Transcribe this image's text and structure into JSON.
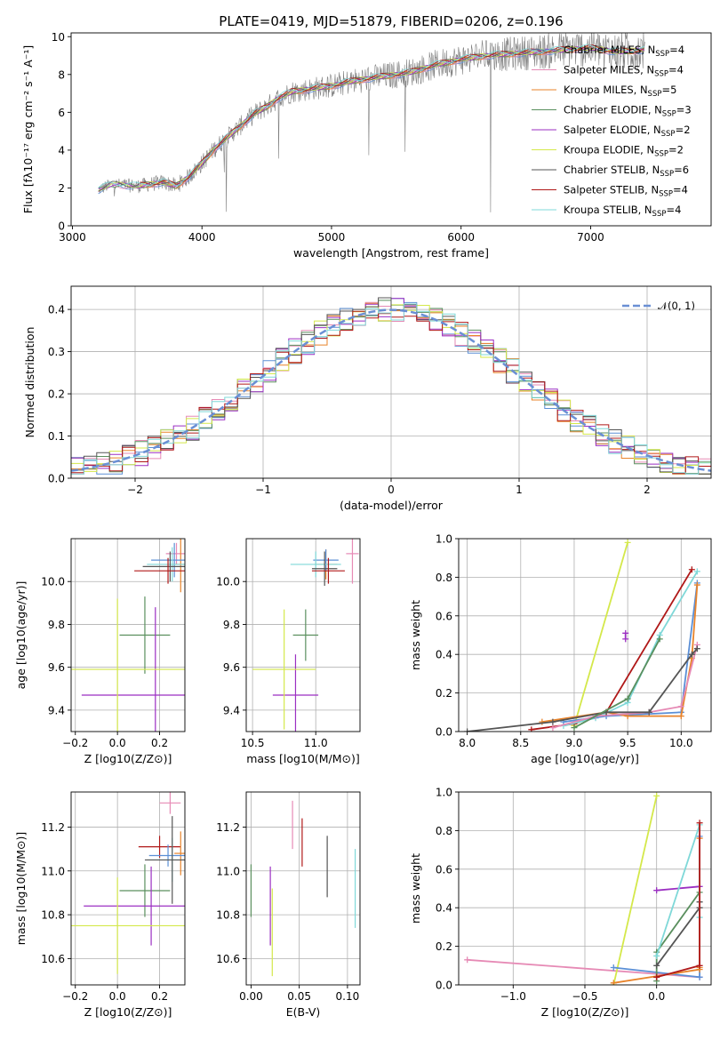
{
  "figure": {
    "title": "PLATE=0419, MJD=51879, FIBERID=0206, z=0.196",
    "colors": {
      "Chabrier MILES": "#5b8fd6",
      "Salpeter MILES": "#e68ab5",
      "Kroupa MILES": "#e8832a",
      "Chabrier ELODIE": "#5a8f5e",
      "Salpeter ELODIE": "#9b2fc2",
      "Kroupa ELODIE": "#d4e84a",
      "Chabrier STELIB": "#555555",
      "Salpeter STELIB": "#b01818",
      "Kroupa STELIB": "#7fd8d8",
      "data": "#808080",
      "normal": "#6a8fd4"
    }
  },
  "chart_data": [
    {
      "id": "spectrum",
      "type": "line",
      "title": "PLATE=0419, MJD=51879, FIBERID=0206, z=0.196",
      "xlabel": "wavelength [Angstrom, rest frame]",
      "ylabel": "Flux [fλ10⁻¹⁷ erg cm⁻² s⁻¹ A⁻¹]",
      "xlim": [
        2990,
        7930
      ],
      "ylim": [
        0,
        10.2
      ],
      "xticks": [
        "3000",
        "4000",
        "5000",
        "6000",
        "7000"
      ],
      "yticks": [
        "0",
        "2",
        "4",
        "6",
        "8",
        "10"
      ],
      "continuum": {
        "x": [
          3200,
          3300,
          3500,
          3700,
          3800,
          3900,
          4000,
          4100,
          4200,
          4300,
          4400,
          4500,
          4600,
          4700,
          4800,
          4900,
          5000,
          5200,
          5400,
          5600,
          5800,
          6000,
          6200,
          6400,
          6600,
          6800,
          7000,
          7200,
          7400
        ],
        "y": [
          1.9,
          2.2,
          2.1,
          2.3,
          2.1,
          2.6,
          3.3,
          4.1,
          4.7,
          5.3,
          5.9,
          6.3,
          6.8,
          7.1,
          7.2,
          7.3,
          7.4,
          7.7,
          7.9,
          8.1,
          8.5,
          8.8,
          9.0,
          9.1,
          9.2,
          9.3,
          9.4,
          9.2,
          9.3
        ]
      },
      "legend": [
        {
          "label": "Chabrier MILES, N",
          "sub": "SSP",
          "n": "=4"
        },
        {
          "label": "Salpeter MILES, N",
          "sub": "SSP",
          "n": "=4"
        },
        {
          "label": "Kroupa MILES, N",
          "sub": "SSP",
          "n": "=5"
        },
        {
          "label": "Chabrier ELODIE, N",
          "sub": "SSP",
          "n": "=3"
        },
        {
          "label": "Salpeter ELODIE, N",
          "sub": "SSP",
          "n": "=2"
        },
        {
          "label": "Kroupa ELODIE, N",
          "sub": "SSP",
          "n": "=2"
        },
        {
          "label": "Chabrier STELIB, N",
          "sub": "SSP",
          "n": "=6"
        },
        {
          "label": "Salpeter STELIB, N",
          "sub": "SSP",
          "n": "=4"
        },
        {
          "label": "Kroupa STELIB, N",
          "sub": "SSP",
          "n": "=4"
        }
      ]
    },
    {
      "id": "residuals",
      "type": "histogram",
      "xlabel": "(data-model)/error",
      "ylabel": "Normed distribution",
      "xlim": [
        -2.5,
        2.5
      ],
      "ylim": [
        0,
        0.455
      ],
      "xticks": [
        "−2",
        "−1",
        "0",
        "1",
        "2"
      ],
      "yticks": [
        "0.0",
        "0.1",
        "0.2",
        "0.3",
        "0.4"
      ],
      "bin_width": 0.1,
      "legend": {
        "label": "𝒩(0, 1)"
      },
      "grid": true
    },
    {
      "id": "age-vs-Z",
      "type": "scatter",
      "xlabel": "Z [log10(Z/Z⊙)]",
      "ylabel": "age  [log10(age/yr)]",
      "xlim": [
        -0.22,
        0.32
      ],
      "ylim": [
        9.3,
        10.2
      ],
      "xticks": [
        "−0.2",
        "0.0",
        "0.2"
      ],
      "yticks": [
        "9.4",
        "9.6",
        "9.8",
        "10.0"
      ],
      "points": [
        {
          "model": "Salpeter MILES",
          "x": 0.28,
          "y": 10.13,
          "xerr": 0.05,
          "yerr": 0.05
        },
        {
          "model": "Kroupa MILES",
          "x": 0.3,
          "y": 10.08,
          "xerr": 0.04,
          "yerr": 0.13
        },
        {
          "model": "Chabrier MILES",
          "x": 0.27,
          "y": 10.1,
          "xerr": 0.11,
          "yerr": 0.08
        },
        {
          "model": "Kroupa STELIB",
          "x": 0.26,
          "y": 10.08,
          "xerr": 0.12,
          "yerr": 0.08
        },
        {
          "model": "Chabrier STELIB",
          "x": 0.25,
          "y": 10.07,
          "xerr": 0.13,
          "yerr": 0.07
        },
        {
          "model": "Salpeter STELIB",
          "x": 0.24,
          "y": 10.05,
          "xerr": 0.16,
          "yerr": 0.06
        },
        {
          "model": "Chabrier ELODIE",
          "x": 0.13,
          "y": 9.75,
          "xerr": 0.12,
          "yerr": 0.18
        },
        {
          "model": "Salpeter ELODIE",
          "x": 0.18,
          "y": 9.47,
          "xerr": 0.35,
          "yerr": 0.41
        },
        {
          "model": "Kroupa ELODIE",
          "x": 0.0,
          "y": 9.59,
          "xerr": 0.62,
          "yerr": 0.33
        }
      ]
    },
    {
      "id": "age-vs-mass",
      "type": "scatter",
      "xlabel": "mass [log10(M/M⊙)]",
      "ylabel": "",
      "xlim": [
        10.45,
        11.35
      ],
      "ylim": [
        9.3,
        10.2
      ],
      "xticks": [
        "10.5",
        "11.0"
      ],
      "yticks": [
        "9.4",
        "9.6",
        "9.8",
        "10.0"
      ],
      "points": [
        {
          "model": "Salpeter MILES",
          "x": 11.29,
          "y": 10.13,
          "xerr": 0.05,
          "yerr": 0.14
        },
        {
          "model": "Kroupa MILES",
          "x": 11.08,
          "y": 10.08,
          "xerr": 0.09,
          "yerr": 0.07
        },
        {
          "model": "Chabrier MILES",
          "x": 11.08,
          "y": 10.1,
          "xerr": 0.1,
          "yerr": 0.05
        },
        {
          "model": "Kroupa STELIB",
          "x": 11.0,
          "y": 10.08,
          "xerr": 0.2,
          "yerr": 0.06
        },
        {
          "model": "Chabrier STELIB",
          "x": 11.07,
          "y": 10.06,
          "xerr": 0.1,
          "yerr": 0.08
        },
        {
          "model": "Salpeter STELIB",
          "x": 11.1,
          "y": 10.05,
          "xerr": 0.13,
          "yerr": 0.06
        },
        {
          "model": "Chabrier ELODIE",
          "x": 10.92,
          "y": 9.75,
          "xerr": 0.1,
          "yerr": 0.12
        },
        {
          "model": "Salpeter ELODIE",
          "x": 10.84,
          "y": 9.47,
          "xerr": 0.18,
          "yerr": 0.19
        },
        {
          "model": "Kroupa ELODIE",
          "x": 10.75,
          "y": 9.59,
          "xerr": 0.25,
          "yerr": 0.28
        }
      ]
    },
    {
      "id": "weight-vs-age",
      "type": "line",
      "xlabel": "age  [log10(age/yr)]",
      "ylabel": "mass weight",
      "xlim": [
        7.92,
        10.28
      ],
      "ylim": [
        0,
        1.0
      ],
      "xticks": [
        "8.0",
        "8.5",
        "9.0",
        "9.5",
        "10.0"
      ],
      "yticks": [
        "0.0",
        "0.2",
        "0.4",
        "0.6",
        "0.8",
        "1.0"
      ],
      "series": [
        {
          "model": "Kroupa ELODIE",
          "x": [
            9.0,
            9.5
          ],
          "y": [
            0.03,
            0.98
          ]
        },
        {
          "model": "Salpeter STELIB",
          "x": [
            8.6,
            9.0,
            9.3,
            10.1
          ],
          "y": [
            0.01,
            0.04,
            0.1,
            0.84
          ]
        },
        {
          "model": "Kroupa STELIB",
          "x": [
            8.9,
            9.2,
            9.5,
            9.8,
            10.15
          ],
          "y": [
            0.03,
            0.07,
            0.15,
            0.5,
            0.83
          ]
        },
        {
          "model": "Chabrier MILES",
          "x": [
            8.9,
            9.3,
            10.0,
            10.15
          ],
          "y": [
            0.05,
            0.08,
            0.1,
            0.77
          ]
        },
        {
          "model": "Kroupa MILES",
          "x": [
            8.7,
            9.3,
            9.5,
            10.0,
            10.1,
            10.15
          ],
          "y": [
            0.05,
            0.1,
            0.08,
            0.08,
            0.38,
            0.76
          ]
        },
        {
          "model": "Salpeter MILES",
          "x": [
            8.8,
            9.2,
            9.7,
            10.0,
            10.15
          ],
          "y": [
            0.02,
            0.08,
            0.1,
            0.13,
            0.45
          ]
        },
        {
          "model": "Chabrier STELIB",
          "x": [
            8.0,
            8.8,
            9.3,
            9.7,
            10.1,
            10.15
          ],
          "y": [
            0.0,
            0.05,
            0.1,
            0.1,
            0.4,
            0.43
          ]
        },
        {
          "model": "Chabrier ELODIE",
          "x": [
            9.0,
            9.5,
            9.8
          ],
          "y": [
            0.02,
            0.17,
            0.48
          ]
        },
        {
          "model": "Salpeter ELODIE",
          "x": [
            9.48,
            9.48
          ],
          "y": [
            0.48,
            0.51
          ]
        }
      ]
    },
    {
      "id": "mass-vs-Z",
      "type": "scatter",
      "xlabel": "Z [log10(Z/Z⊙)]",
      "ylabel": "mass [log10(M/M⊙)]",
      "xlim": [
        -0.22,
        0.32
      ],
      "ylim": [
        10.48,
        11.36
      ],
      "xticks": [
        "−0.2",
        "0.0",
        "0.2"
      ],
      "yticks": [
        "10.6",
        "10.8",
        "11.0",
        "11.2"
      ],
      "points": [
        {
          "model": "Salpeter MILES",
          "x": 0.25,
          "y": 11.31,
          "xerr": 0.05,
          "yerr": 0.05
        },
        {
          "model": "Salpeter STELIB",
          "x": 0.2,
          "y": 11.11,
          "xerr": 0.1,
          "yerr": 0.05
        },
        {
          "model": "Kroupa MILES",
          "x": 0.3,
          "y": 11.08,
          "xerr": 0.03,
          "yerr": 0.1
        },
        {
          "model": "Chabrier MILES",
          "x": 0.24,
          "y": 11.07,
          "xerr": 0.09,
          "yerr": 0.05
        },
        {
          "model": "Kroupa STELIB",
          "x": 0.26,
          "y": 11.05,
          "xerr": 0.12,
          "yerr": 0.1
        },
        {
          "model": "Chabrier STELIB",
          "x": 0.26,
          "y": 11.05,
          "xerr": 0.13,
          "yerr": 0.2
        },
        {
          "model": "Chabrier ELODIE",
          "x": 0.13,
          "y": 10.91,
          "xerr": 0.12,
          "yerr": 0.12
        },
        {
          "model": "Salpeter ELODIE",
          "x": 0.16,
          "y": 10.84,
          "xerr": 0.32,
          "yerr": 0.18
        },
        {
          "model": "Kroupa ELODIE",
          "x": 0.0,
          "y": 10.75,
          "xerr": 0.62,
          "yerr": 0.22
        }
      ]
    },
    {
      "id": "mass-vs-ebv",
      "type": "scatter",
      "xlabel": "E(B-V)",
      "ylabel": "",
      "xlim": [
        -0.005,
        0.113
      ],
      "ylim": [
        10.48,
        11.36
      ],
      "xticks": [
        "0.00",
        "0.05",
        "0.10"
      ],
      "yticks": [
        "10.6",
        "10.8",
        "11.0",
        "11.2"
      ],
      "points": [
        {
          "model": "Chabrier ELODIE",
          "x": 0.0,
          "y": 10.91,
          "yerr": 0.12
        },
        {
          "model": "Salpeter ELODIE",
          "x": 0.02,
          "y": 10.84,
          "yerr": 0.18
        },
        {
          "model": "Kroupa ELODIE",
          "x": 0.022,
          "y": 10.72,
          "yerr": 0.2
        },
        {
          "model": "Salpeter MILES",
          "x": 0.043,
          "y": 11.21,
          "yerr": 0.11
        },
        {
          "model": "Salpeter STELIB",
          "x": 0.053,
          "y": 11.13,
          "yerr": 0.11
        },
        {
          "model": "Chabrier STELIB",
          "x": 0.079,
          "y": 11.02,
          "yerr": 0.14
        },
        {
          "model": "Kroupa STELIB",
          "x": 0.108,
          "y": 10.92,
          "yerr": 0.18
        }
      ]
    },
    {
      "id": "weight-vs-Z",
      "type": "line",
      "xlabel": "Z [log10(Z/Z⊙)]",
      "ylabel": "mass weight",
      "xlim": [
        -1.38,
        0.38
      ],
      "ylim": [
        0,
        1.0
      ],
      "xticks": [
        "−1.0",
        "−0.5",
        "0.0"
      ],
      "yticks": [
        "0.0",
        "0.2",
        "0.4",
        "0.6",
        "0.8",
        "1.0"
      ],
      "series": [
        {
          "model": "Salpeter MILES",
          "x": [
            -1.32,
            0.3
          ],
          "y": [
            0.13,
            0.04
          ]
        },
        {
          "model": "Kroupa ELODIE",
          "x": [
            -0.3,
            0.0
          ],
          "y": [
            0.0,
            0.98
          ]
        },
        {
          "model": "Chabrier MILES",
          "x": [
            -0.3,
            0.3,
            0.3
          ],
          "y": [
            0.09,
            0.04,
            0.77
          ]
        },
        {
          "model": "Kroupa MILES",
          "x": [
            -0.3,
            0.3,
            0.3,
            0.3
          ],
          "y": [
            0.01,
            0.08,
            0.09,
            0.76
          ]
        },
        {
          "model": "Salpeter ELODIE",
          "x": [
            0.0,
            0.3
          ],
          "y": [
            0.49,
            0.51
          ]
        },
        {
          "model": "Chabrier ELODIE",
          "x": [
            0.0,
            0.0,
            0.3
          ],
          "y": [
            0.02,
            0.17,
            0.48
          ]
        },
        {
          "model": "Chabrier STELIB",
          "x": [
            0.0,
            0.3,
            0.3
          ],
          "y": [
            0.1,
            0.4,
            0.43
          ]
        },
        {
          "model": "Kroupa STELIB",
          "x": [
            0.0,
            0.3,
            0.3
          ],
          "y": [
            0.15,
            0.83,
            0.35
          ]
        },
        {
          "model": "Salpeter STELIB",
          "x": [
            0.0,
            0.3,
            0.3
          ],
          "y": [
            0.04,
            0.1,
            0.84
          ]
        }
      ]
    }
  ]
}
